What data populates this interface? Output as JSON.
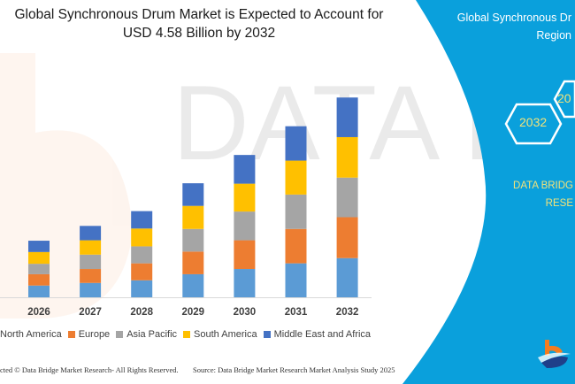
{
  "header": {
    "title_line1": "Global Synchronous Drum Market is Expected to Account for USD 4.58",
    "title_line2": "Billion by 2032"
  },
  "panel": {
    "title_line1": "Global Synchronous Dr",
    "title_line2": "Region",
    "hex_1": "2032",
    "hex_2": "20",
    "brand_line1": "DATA BRIDG",
    "brand_line2": "RESE",
    "background_color": "#0aa0dc",
    "logo": "Data Bridge Market Research"
  },
  "watermark": "DATA BRIDGE MARKET RESEARCH",
  "footer": {
    "copyright": "cted © Data Bridge Market Research-  All Rights Reserved.",
    "source": "Source:  Data Bridge Market Research  Market Analysis Study 2025"
  },
  "chart_data": {
    "type": "bar",
    "stacked": true,
    "title": "Global Synchronous Drum Market is Expected to Account for USD 4.58 Billion by 2032",
    "categories": [
      "2026",
      "2027",
      "2028",
      "2029",
      "2030",
      "2031",
      "2032"
    ],
    "ylim": [
      0,
      4.6
    ],
    "grid": false,
    "legend_position": "bottom",
    "series": [
      {
        "name": "North America",
        "color": "#5b9bd5",
        "values": [
          0.27,
          0.33,
          0.39,
          0.53,
          0.65,
          0.78,
          0.9
        ]
      },
      {
        "name": "Europe",
        "color": "#ed7d31",
        "values": [
          0.26,
          0.32,
          0.39,
          0.52,
          0.66,
          0.79,
          0.94
        ]
      },
      {
        "name": "Asia Pacific",
        "color": "#a5a5a5",
        "values": [
          0.24,
          0.33,
          0.39,
          0.52,
          0.66,
          0.79,
          0.91
        ]
      },
      {
        "name": "South America",
        "color": "#ffc000",
        "values": [
          0.27,
          0.33,
          0.41,
          0.53,
          0.64,
          0.78,
          0.93
        ]
      },
      {
        "name": "Middle East and Africa",
        "color": "#4472c4",
        "values": [
          0.26,
          0.33,
          0.4,
          0.52,
          0.66,
          0.79,
          0.91
        ]
      }
    ]
  }
}
